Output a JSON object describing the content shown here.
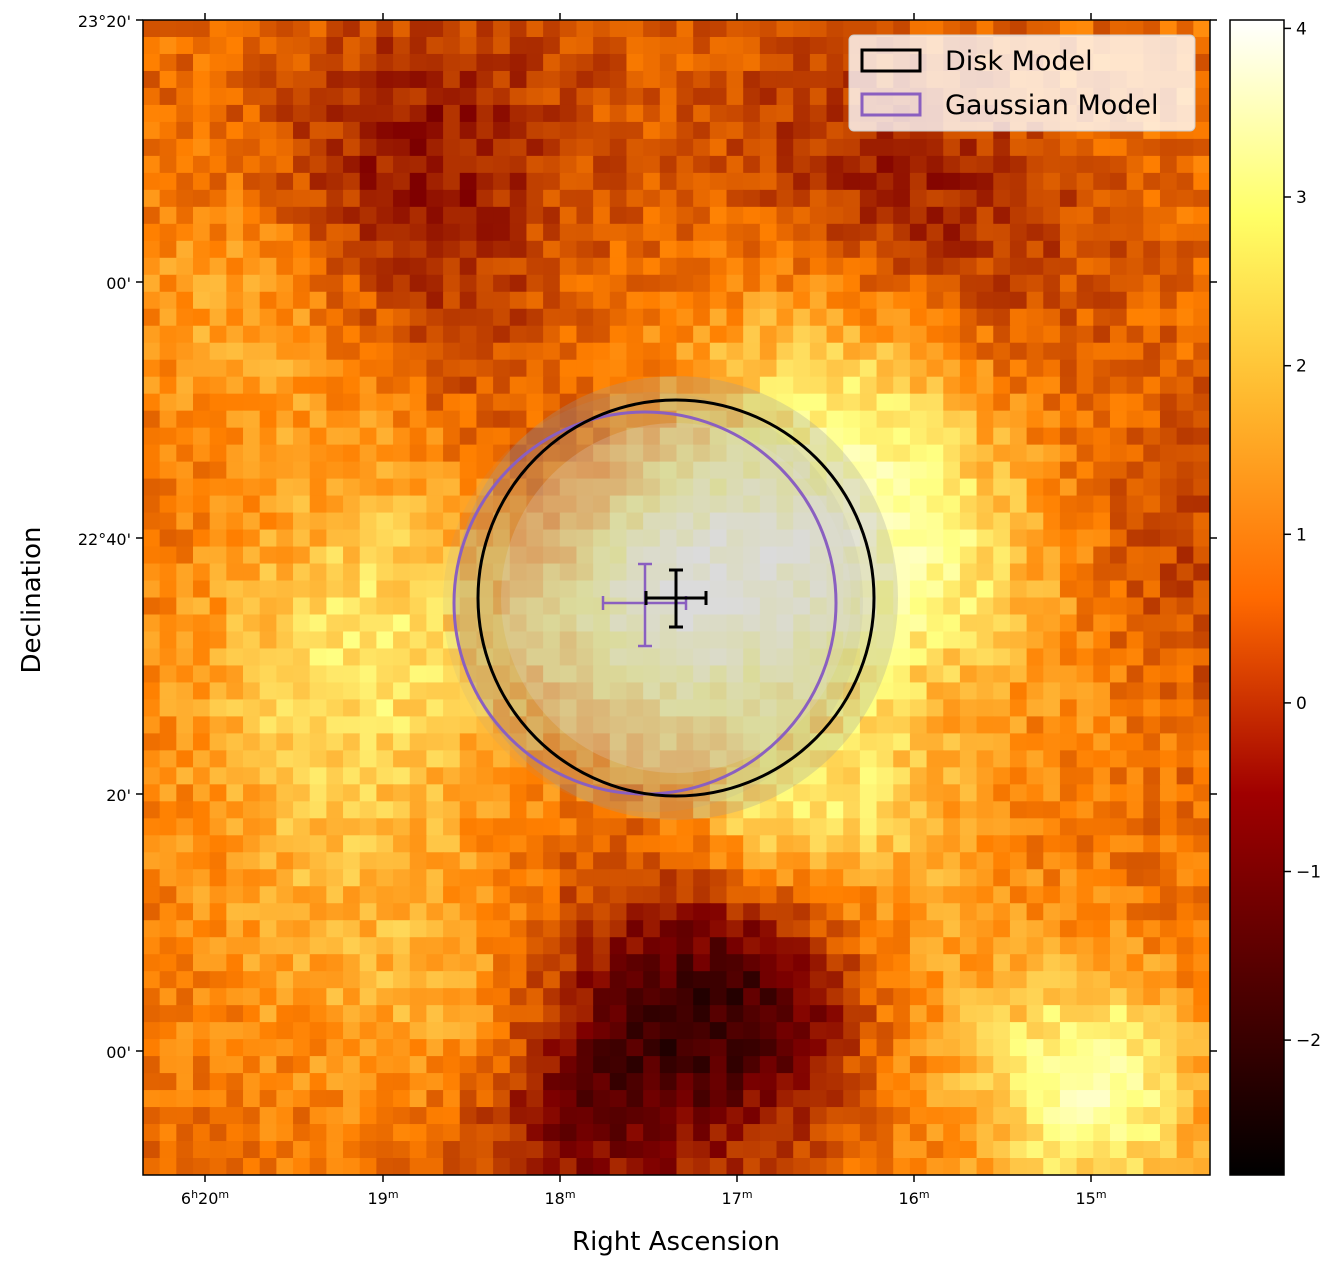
{
  "chart_data": {
    "type": "heatmap",
    "title": "",
    "xlabel": "Right Ascension",
    "ylabel": "Declination",
    "x_ticks": [
      {
        "hours": "6",
        "minutes": "20",
        "h_unit": "h",
        "m_unit": "m"
      },
      {
        "hours": "",
        "minutes": "19",
        "h_unit": "",
        "m_unit": "m"
      },
      {
        "hours": "",
        "minutes": "18",
        "h_unit": "",
        "m_unit": "m"
      },
      {
        "hours": "",
        "minutes": "17",
        "h_unit": "",
        "m_unit": "m"
      },
      {
        "hours": "",
        "minutes": "16",
        "h_unit": "",
        "m_unit": "m"
      },
      {
        "hours": "",
        "minutes": "15",
        "h_unit": "",
        "m_unit": "m"
      }
    ],
    "y_ticks": [
      "23°20'",
      "00'",
      "22°40'",
      "20'",
      "00'"
    ],
    "colorbar": {
      "colormap": "afmhot",
      "range": [
        -2.8,
        4.05
      ],
      "ticks": [
        "4",
        "3",
        "2",
        "1",
        "0",
        "−1",
        "−2"
      ],
      "tick_values": [
        4,
        3,
        2,
        1,
        0,
        -1,
        -2
      ]
    },
    "image_grid": {
      "nx": 64,
      "ny": 68
    },
    "legend": {
      "position": "top-right",
      "entries": [
        {
          "label": "Disk Model",
          "color": "#000000"
        },
        {
          "label": "Gaussian Model",
          "color": "#8a5fc0"
        }
      ]
    },
    "models": [
      {
        "name": "Disk Model",
        "color": "#000000",
        "center_ra": "6h17m20s",
        "center_dec": "22°35'"
      },
      {
        "name": "Gaussian Model",
        "color": "#8a5fc0",
        "center_ra": "6h17m30s",
        "center_dec": "22°34'"
      }
    ],
    "bright_regions": [
      {
        "label": "central source",
        "peak": 3.8
      },
      {
        "label": "lower-right excess",
        "peak": 3.5
      }
    ]
  }
}
